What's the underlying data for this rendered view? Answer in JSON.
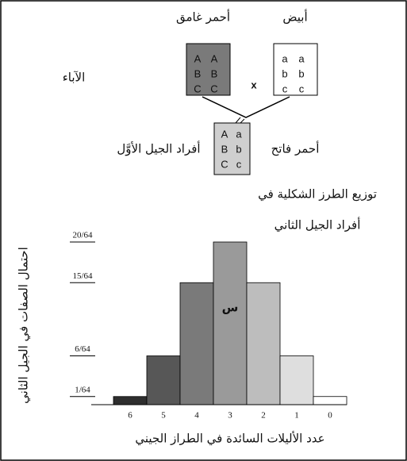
{
  "diagram": {
    "parents_label": "الآباء",
    "dark_parent": {
      "label": "أحمر غامق",
      "genes": [
        [
          "A",
          "A"
        ],
        [
          "B",
          "B"
        ],
        [
          "C",
          "C"
        ]
      ]
    },
    "white_parent": {
      "label": "أبيض",
      "genes": [
        [
          "a",
          "a"
        ],
        [
          "b",
          "b"
        ],
        [
          "c",
          "c"
        ]
      ]
    },
    "cross": "x",
    "f1": {
      "label": "أفراد الجيل الأوَّل",
      "phenotype": "أحمر فاتح",
      "genes": [
        [
          "A",
          "a"
        ],
        [
          "B",
          "b"
        ],
        [
          "C",
          "c"
        ]
      ]
    },
    "caption_lines": [
      "توزيع الطرز الشكلية في",
      "أفراد الجيل الثاني"
    ]
  },
  "chart_data": {
    "type": "bar",
    "categories": [
      "6",
      "5",
      "4",
      "3",
      "2",
      "1",
      "0"
    ],
    "values": [
      0.015625,
      0.09375,
      0.234375,
      0.3125,
      0.234375,
      0.09375,
      0.015625
    ],
    "colors": [
      "#2e2e2e",
      "#575757",
      "#7a7a7a",
      "#9a9a9a",
      "#bdbdbd",
      "#dedede",
      "#ffffff"
    ],
    "ylim": [
      0,
      0.3125
    ],
    "yticks": [
      {
        "value": 0.015625,
        "label": "1/64"
      },
      {
        "value": 0.09375,
        "label": "6/64"
      },
      {
        "value": 0.234375,
        "label": "15/64"
      },
      {
        "value": 0.3125,
        "label": "20/64"
      }
    ],
    "annotation": "س",
    "xlabel": "عدد الأليلات السائدة في الطراز الجيني",
    "ylabel": "احتمال الصفات في الجيل الثاني"
  }
}
